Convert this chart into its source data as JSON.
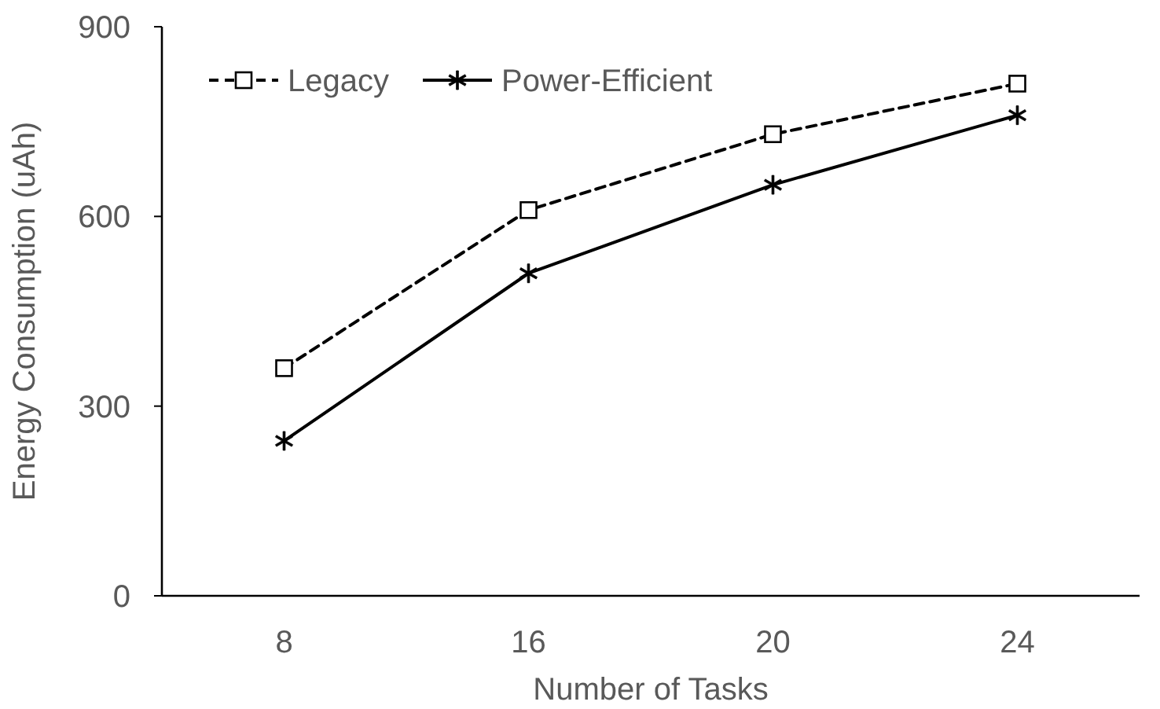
{
  "chart_data": {
    "type": "line",
    "xlabel": "Number of Tasks",
    "ylabel": "Energy Consumption (uAh)",
    "categories": [
      "8",
      "16",
      "20",
      "24"
    ],
    "ylim": [
      0,
      900
    ],
    "yticks": [
      0,
      300,
      600,
      900
    ],
    "grid": false,
    "legend": "top left",
    "series": [
      {
        "name": "Legacy",
        "color": "#000000",
        "values": [
          360,
          610,
          730,
          810
        ],
        "marker": "square",
        "line_style": "dashed"
      },
      {
        "name": "Power-Efficient",
        "color": "#000000",
        "values": [
          245,
          510,
          650,
          760
        ],
        "marker": "cross",
        "line_style": "solid"
      }
    ]
  }
}
